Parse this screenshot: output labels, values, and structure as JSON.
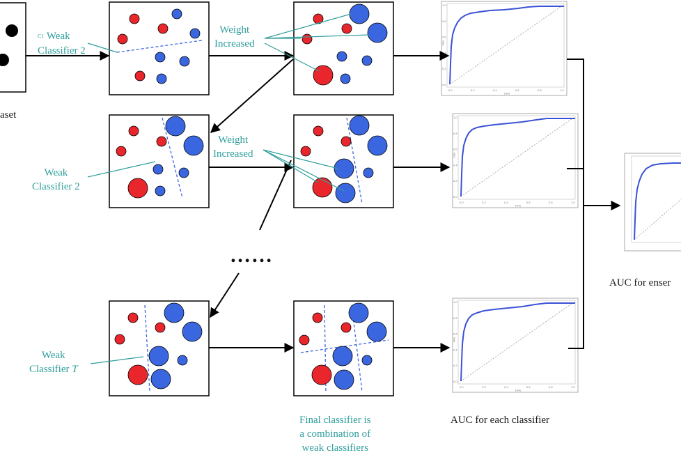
{
  "labels": {
    "dataset_fragment": "aset",
    "wc2_top_prefix": "C1",
    "wc2_top": [
      "Weak",
      "Classifier 2"
    ],
    "weight_increased": [
      "Weight",
      "Increased"
    ],
    "wc2_mid": [
      "Weak",
      "Classifier 2"
    ],
    "wc_t": "Weak",
    "wc_t_line2": "Classifier ",
    "wc_t_var": "T",
    "ellipsis": "……",
    "final": [
      "Final classifier is",
      "a combination of",
      "weak classifiers"
    ],
    "auc_each": "AUC for each classifier",
    "auc_ensemble_fragment": "AUC for enser"
  },
  "colors": {
    "teal": "#2f9e9c",
    "red": "#e8262b",
    "blue": "#3a67e0",
    "curve": "#3a52d6",
    "arrow": "#000000"
  },
  "roc": {
    "ticks_x": [
      "0.0",
      "0.2",
      "0.4",
      "0.6",
      "0.8",
      "1.0"
    ],
    "ticks_y": [
      "0.0",
      "0.2",
      "0.4",
      "0.6",
      "0.8",
      "1.0"
    ],
    "xlabel": "FPR",
    "ylabel": "TPR"
  }
}
